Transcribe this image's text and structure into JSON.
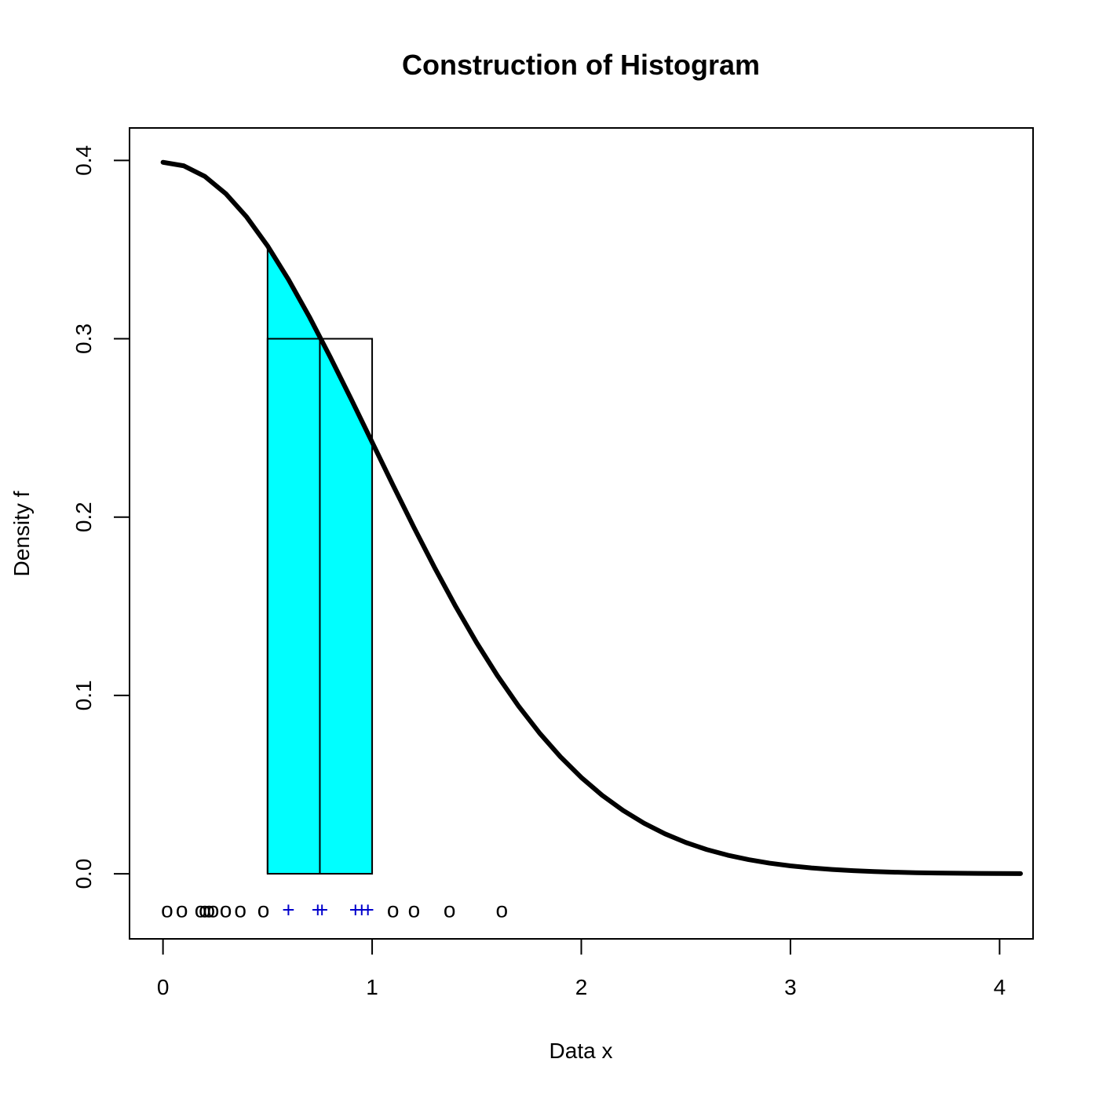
{
  "chart_data": {
    "type": "bar",
    "title": "Construction of Histogram",
    "xlabel": "Data x",
    "ylabel": "Density f",
    "xlim": [
      -0.16,
      4.16
    ],
    "ylim": [
      -0.0365,
      0.4182
    ],
    "x_ticks": [
      0,
      1,
      2,
      3,
      4
    ],
    "x_tick_labels": [
      "0",
      "1",
      "2",
      "3",
      "4"
    ],
    "y_ticks": [
      0,
      0.1,
      0.2,
      0.3,
      0.4
    ],
    "y_tick_labels": [
      "0.0",
      "0.1",
      "0.2",
      "0.3",
      "0.4"
    ],
    "grid": false,
    "colors": {
      "fill": "#00ffff",
      "points_in_bin": "#0000cc",
      "points_other": "#000000",
      "curve": "#000000"
    },
    "density_curve": {
      "distribution": "half-normal density (standard normal pdf for x >= 0)",
      "x_range": [
        0,
        4.1
      ]
    },
    "area_under_curve": {
      "x_from": 0.5,
      "x_to": 1.0
    },
    "histogram_bar": {
      "x_from": 0.5,
      "x_to": 1.0,
      "height": 0.3
    },
    "bin_midpoint": 0.75,
    "rug": {
      "y": -0.02,
      "points_outside": [
        0.02,
        0.09,
        0.18,
        0.2,
        0.22,
        0.24,
        0.3,
        0.37,
        0.48,
        1.1,
        1.2,
        1.37,
        1.62
      ],
      "points_inside": [
        0.6,
        0.74,
        0.76,
        0.92,
        0.95,
        0.98
      ]
    },
    "markers": {
      "outside": "o",
      "inside": "+"
    }
  }
}
